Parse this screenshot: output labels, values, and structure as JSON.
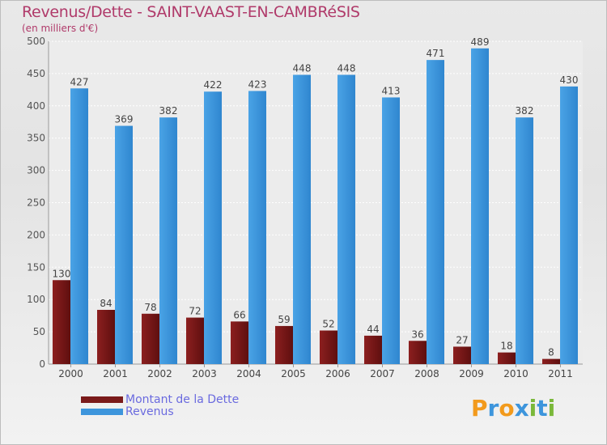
{
  "title": "Revenus/Dette - SAINT-VAAST-EN-CAMBRéSIS",
  "subtitle": "(en milliers d'€)",
  "chart_data": {
    "type": "bar",
    "categories": [
      "2000",
      "2001",
      "2002",
      "2003",
      "2004",
      "2005",
      "2006",
      "2007",
      "2008",
      "2009",
      "2010",
      "2011"
    ],
    "series": [
      {
        "name": "Montant de la Dette",
        "color": "#7a1a1a",
        "values": [
          130,
          84,
          78,
          72,
          66,
          59,
          52,
          44,
          36,
          27,
          18,
          8
        ]
      },
      {
        "name": "Revenus",
        "color": "#3d95dc",
        "values": [
          427,
          369,
          382,
          422,
          423,
          448,
          448,
          413,
          471,
          489,
          382,
          430
        ]
      }
    ],
    "ylim": [
      0,
      500
    ],
    "yticks": [
      0,
      50,
      100,
      150,
      200,
      250,
      300,
      350,
      400,
      450,
      500
    ],
    "grid": true,
    "legend_position": "bottom-left"
  },
  "legend": [
    {
      "label": "Montant de la Dette",
      "color": "#7a1a1a"
    },
    {
      "label": "Revenus",
      "color": "#3d95dc"
    }
  ],
  "logo": {
    "letters": [
      "P",
      "r",
      "o",
      "x",
      "i",
      "t",
      "i"
    ],
    "colors": [
      "#f29a1c",
      "#3d95dc",
      "#f29a1c",
      "#3d95dc",
      "#7ab83a",
      "#3d95dc",
      "#7ab83a"
    ]
  }
}
